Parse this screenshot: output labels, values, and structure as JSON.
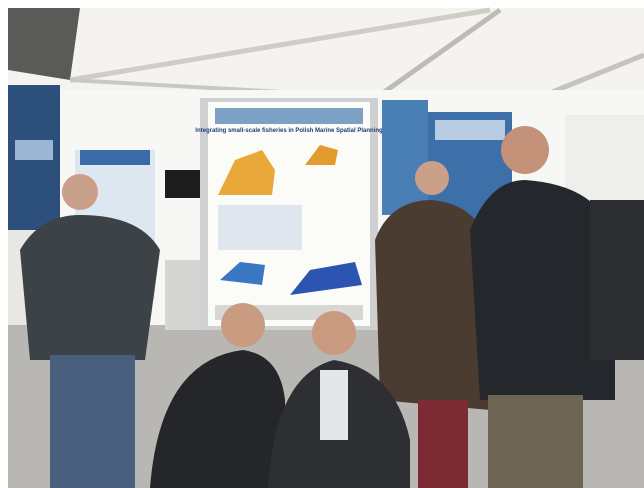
{
  "poster": {
    "title": "Integrating small-scale fisheries in Polish Marine Spatial Planning"
  }
}
